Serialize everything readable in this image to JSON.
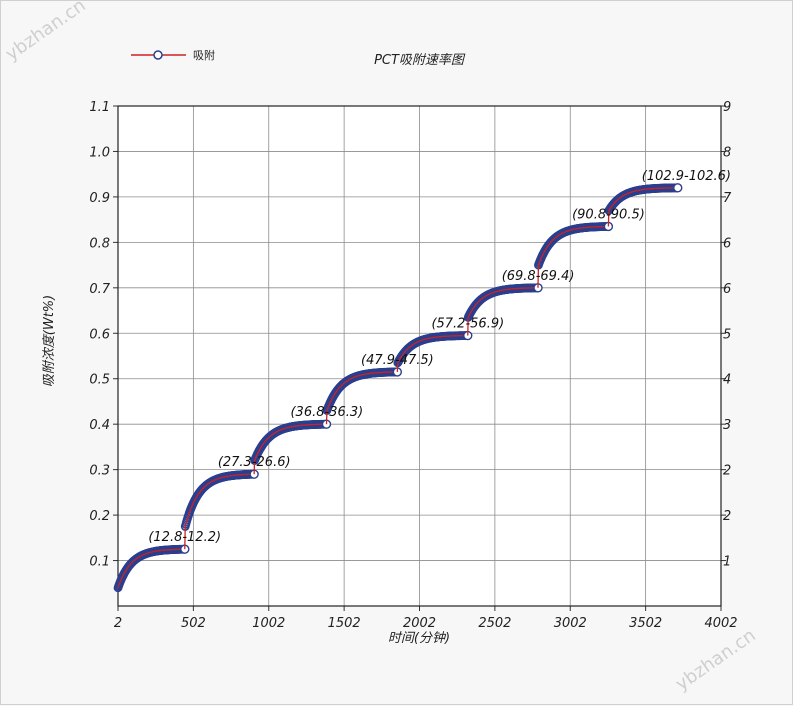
{
  "chart_data": {
    "type": "line",
    "title": "PCT吸附速率图",
    "xlabel": "时间(分钟)",
    "ylabel": "吸附浓度(Wt%)",
    "xlim": [
      2,
      4002
    ],
    "ylim": [
      0,
      1.1
    ],
    "y2lim": [
      0,
      9
    ],
    "x_ticks": [
      "2",
      "502",
      "1002",
      "1502",
      "2002",
      "2502",
      "3002",
      "3502",
      "4002"
    ],
    "y_ticks": [
      "0.1",
      "0.2",
      "0.3",
      "0.4",
      "0.5",
      "0.6",
      "0.7",
      "0.8",
      "0.9",
      "1.0",
      "1.1"
    ],
    "y2_ticks": [
      "1",
      "2",
      "2",
      "3",
      "4",
      "5",
      "6",
      "6",
      "7",
      "8",
      "9"
    ],
    "grid": true,
    "legend_position": "top-left",
    "line_color": "#cc2222",
    "marker_color": "#2b3f8f",
    "series": [
      {
        "name": "吸附",
        "segments": [
          {
            "x_start": 2,
            "x_end": 445,
            "y_start": 0.04,
            "y_end": 0.125
          },
          {
            "x_start": 448,
            "x_end": 905,
            "y_start": 0.175,
            "y_end": 0.29
          },
          {
            "x_start": 908,
            "x_end": 1385,
            "y_start": 0.32,
            "y_end": 0.4
          },
          {
            "x_start": 1388,
            "x_end": 1855,
            "y_start": 0.43,
            "y_end": 0.515
          },
          {
            "x_start": 1858,
            "x_end": 2322,
            "y_start": 0.535,
            "y_end": 0.595
          },
          {
            "x_start": 2325,
            "x_end": 2788,
            "y_start": 0.635,
            "y_end": 0.7
          },
          {
            "x_start": 2791,
            "x_end": 3255,
            "y_start": 0.75,
            "y_end": 0.835
          },
          {
            "x_start": 3258,
            "x_end": 3715,
            "y_start": 0.87,
            "y_end": 0.92
          }
        ]
      }
    ],
    "annotations": [
      {
        "text": "(12.8-12.2)",
        "x": 442,
        "y": 0.125
      },
      {
        "text": "(27.3-26.6)",
        "x": 903,
        "y": 0.29
      },
      {
        "text": "(36.8-36.3)",
        "x": 1385,
        "y": 0.4
      },
      {
        "text": "(47.9-47.5)",
        "x": 1853,
        "y": 0.515
      },
      {
        "text": "(57.2-56.9)",
        "x": 2320,
        "y": 0.595
      },
      {
        "text": "(69.8-69.4)",
        "x": 2786,
        "y": 0.7
      },
      {
        "text": "(90.8-90.5)",
        "x": 3253,
        "y": 0.835
      },
      {
        "text": "(102.9-102.6)",
        "x": 3715,
        "y": 0.92
      }
    ]
  },
  "watermark": "ybzhan.cn"
}
